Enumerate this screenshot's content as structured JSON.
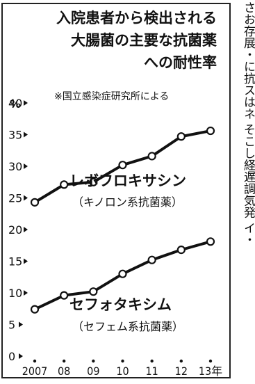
{
  "chart_data": {
    "type": "line",
    "title_lines": [
      "入院患者から検出される",
      "大腸菌の主要な抗菌薬",
      "への耐性率"
    ],
    "note": "※国立感染症研究所による",
    "y_unit": "%",
    "ylim": [
      0,
      40
    ],
    "y_ticks": [
      "0",
      "5",
      "10",
      "15",
      "20",
      "25",
      "30",
      "35",
      "40"
    ],
    "x_categories": [
      "2007",
      "08",
      "09",
      "10",
      "11",
      "12",
      "13年"
    ],
    "grid": false,
    "series": [
      {
        "name": "レボフロキサシン",
        "subname": "（キノロン系抗菌薬）",
        "values": [
          24.3,
          27.1,
          27.5,
          30.2,
          31.6,
          34.7,
          35.6
        ]
      },
      {
        "name": "セフォタキシム",
        "subname": "（セフェム系抗菌薬）",
        "values": [
          7.4,
          9.6,
          10.2,
          13.0,
          15.2,
          16.8,
          18.1
        ]
      }
    ],
    "line_color": "#111111",
    "marker_fill": "#ffffff"
  },
  "side_text": {
    "column_1": "さお存展・に抗スはネ そこし経遅調気発 イ・"
  }
}
